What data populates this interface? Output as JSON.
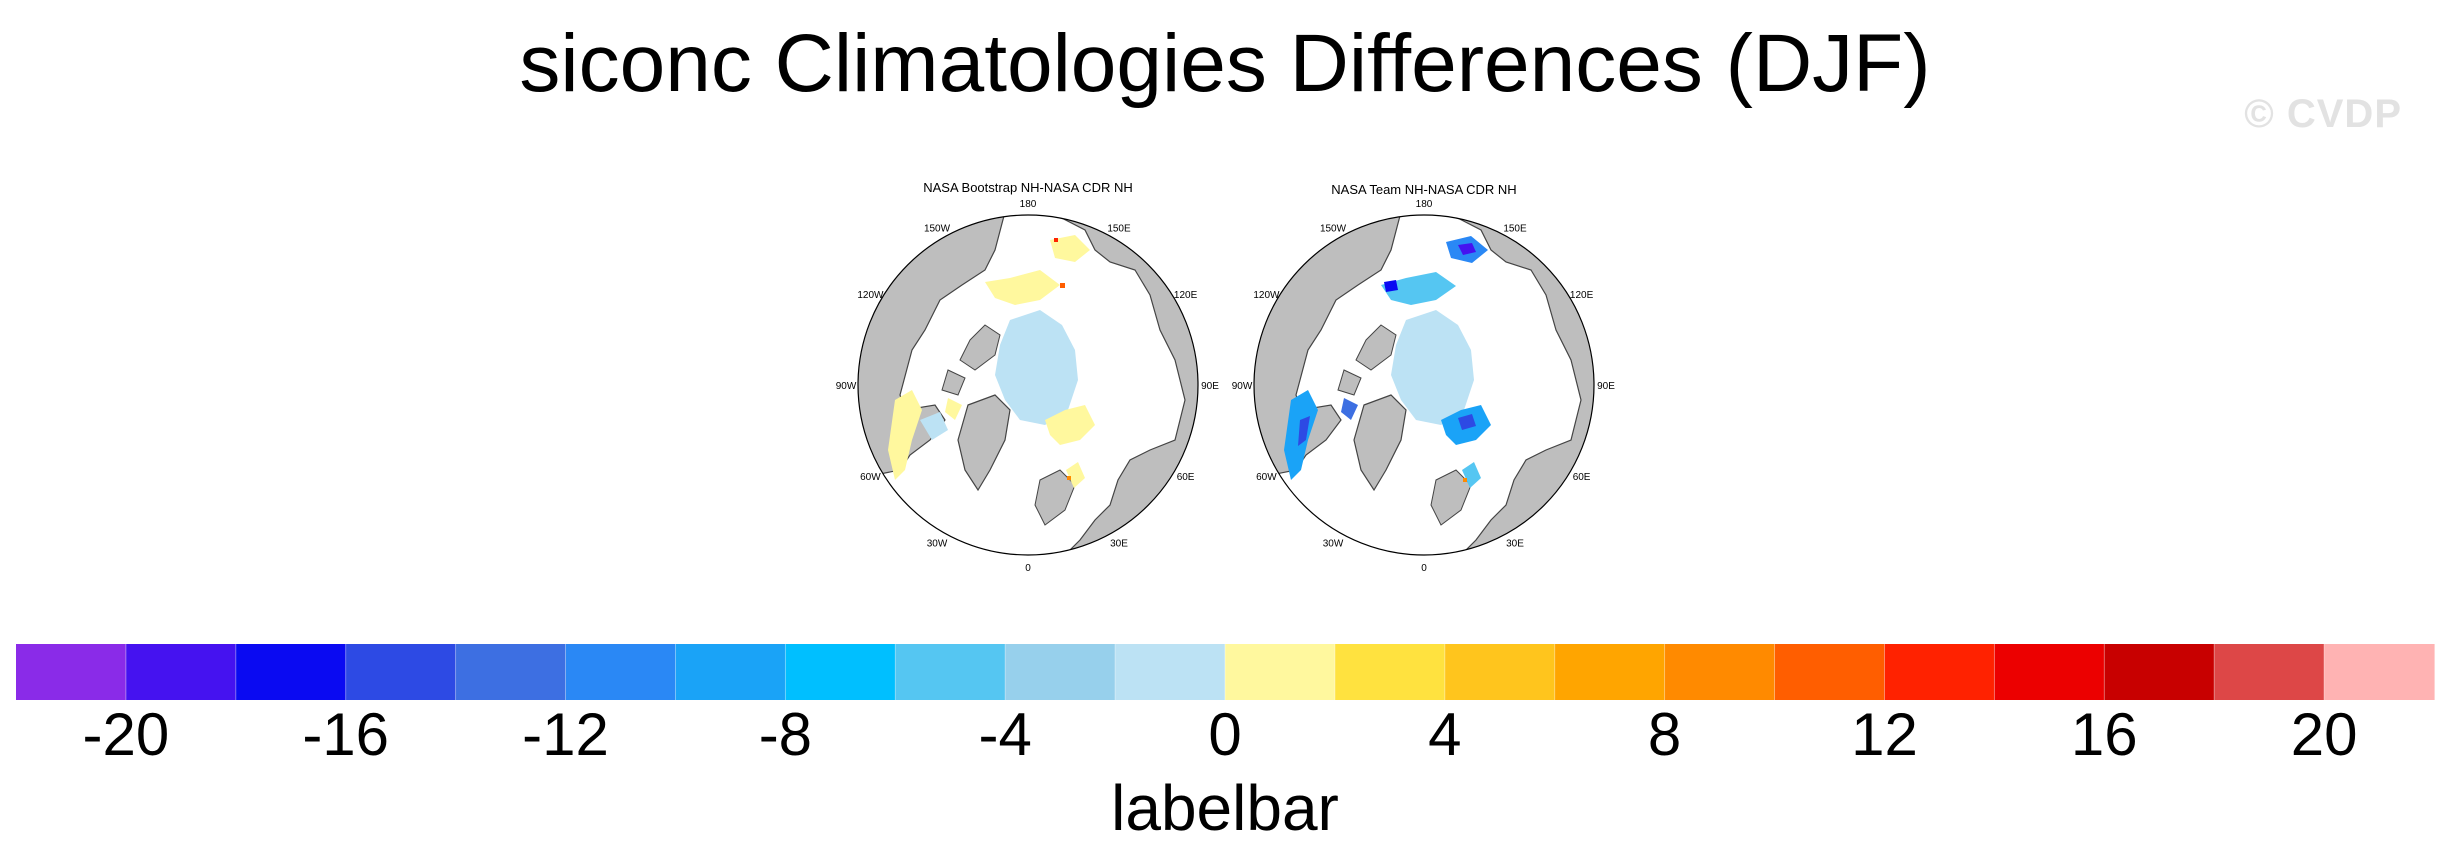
{
  "title": "siconc Climatologies Differences (DJF)",
  "watermark": "© CVDP",
  "chart_data": [
    {
      "type": "heatmap",
      "title": "NASA Bootstrap NH-NASA CDR NH",
      "projection": "north polar stereographic",
      "lon_labels": [
        "180",
        "150E",
        "120E",
        "90E",
        "60E",
        "30E",
        "0",
        "30W",
        "60W",
        "90W",
        "120W",
        "150W"
      ],
      "dominant_difference": "central Arctic ~0 to -2 (light blue); marginal ice zones +0 to +4 (light yellow); isolated +6 to +20 spots"
    },
    {
      "type": "heatmap",
      "title": "NASA Team NH-NASA CDR NH",
      "projection": "north polar stereographic",
      "lon_labels": [
        "180",
        "150E",
        "120E",
        "90E",
        "60E",
        "30E",
        "0",
        "30W",
        "60W",
        "90W",
        "120W",
        "150W"
      ],
      "dominant_difference": "central Arctic ~0 to -2 (light blue); marginal ice zones -4 to -20 (blue to violet)"
    }
  ],
  "labelbar": {
    "title": "labelbar",
    "min": -22,
    "max": 22,
    "step": 2,
    "tick_labels": [
      "-20",
      "-16",
      "-12",
      "-8",
      "-4",
      "0",
      "4",
      "8",
      "12",
      "16",
      "20"
    ],
    "tick_values": [
      -20,
      -16,
      -12,
      -8,
      -4,
      0,
      4,
      8,
      12,
      16,
      20
    ],
    "colors": [
      "#8A2BE8",
      "#4512F0",
      "#0A0AF2",
      "#2D4AE4",
      "#3D6FE2",
      "#2A88F5",
      "#1AA3F7",
      "#00BFFF",
      "#55C6F2",
      "#97D0EC",
      "#BCE2F4",
      "#FFF89E",
      "#FFE23F",
      "#FFC51D",
      "#FFA500",
      "#FF8A00",
      "#FF5E00",
      "#FF2200",
      "#EC0000",
      "#C80000",
      "#DD4747",
      "#FFB3B3"
    ]
  }
}
